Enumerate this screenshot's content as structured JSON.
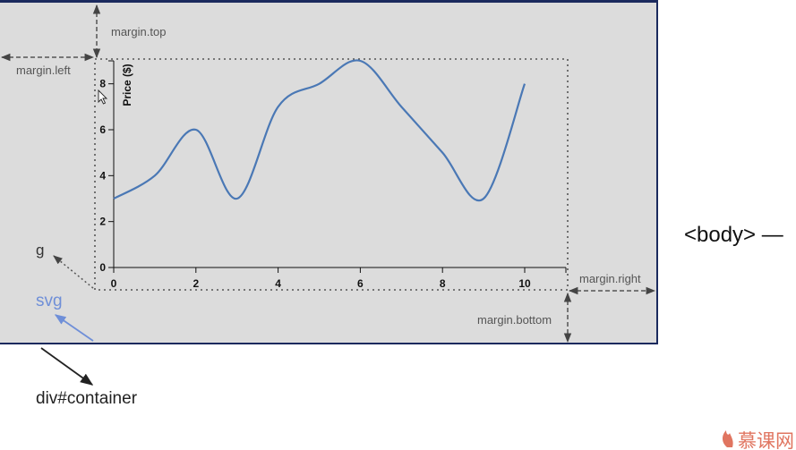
{
  "annotations": {
    "margin_top": "margin.top",
    "margin_left": "margin.left",
    "margin_right": "margin.right",
    "margin_bottom": "margin.bottom",
    "g_label": "g",
    "svg_label": "svg",
    "container_label": "div#container",
    "body_label": "<body> —"
  },
  "chart_data": {
    "type": "line",
    "title": "",
    "xlabel": "",
    "ylabel": "Price ($)",
    "xlim": [
      0,
      11
    ],
    "ylim": [
      0,
      9
    ],
    "x_ticks": [
      0,
      2,
      4,
      6,
      8,
      10
    ],
    "y_ticks": [
      0,
      2,
      4,
      6,
      8
    ],
    "x": [
      0,
      1,
      2,
      3,
      4,
      5,
      6,
      7,
      8,
      9,
      10
    ],
    "series": [
      {
        "values": [
          3,
          4,
          6,
          3,
          7,
          8,
          9,
          7,
          5,
          3,
          8
        ]
      }
    ],
    "line_color": "#4a78b5",
    "curve": "smooth"
  },
  "colors": {
    "panel_bg": "#dcdcdc",
    "panel_border": "#1b2a5e",
    "svg_label_color": "#6f8fd8",
    "svg_arrow_color": "#6f8fd8",
    "annotation_color": "#555555"
  },
  "watermark": {
    "icon": "flame-icon",
    "text": "慕课网"
  }
}
